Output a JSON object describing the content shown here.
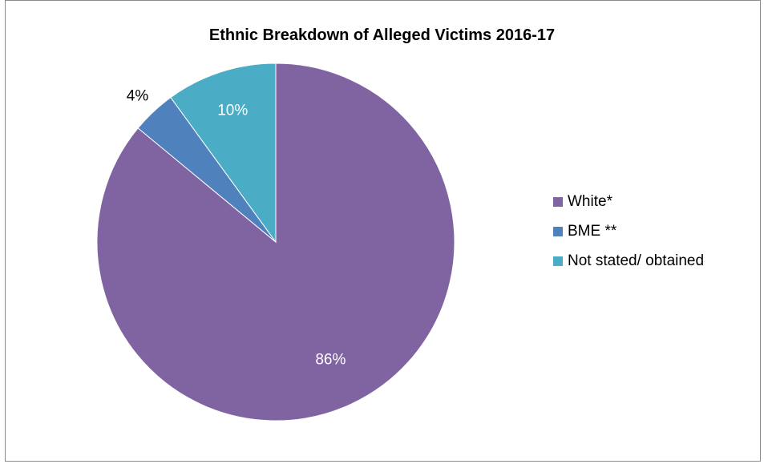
{
  "chart_data": {
    "type": "pie",
    "title": "Ethnic Breakdown of Alleged Victims 2016-17",
    "categories": [
      "White*",
      "BME **",
      "Not stated/ obtained"
    ],
    "values": [
      86,
      4,
      10
    ],
    "labels": [
      "86%",
      "4%",
      "10%"
    ],
    "colors": [
      "#8064A2",
      "#4F81BD",
      "#4BACC6"
    ],
    "legend_position": "right"
  }
}
